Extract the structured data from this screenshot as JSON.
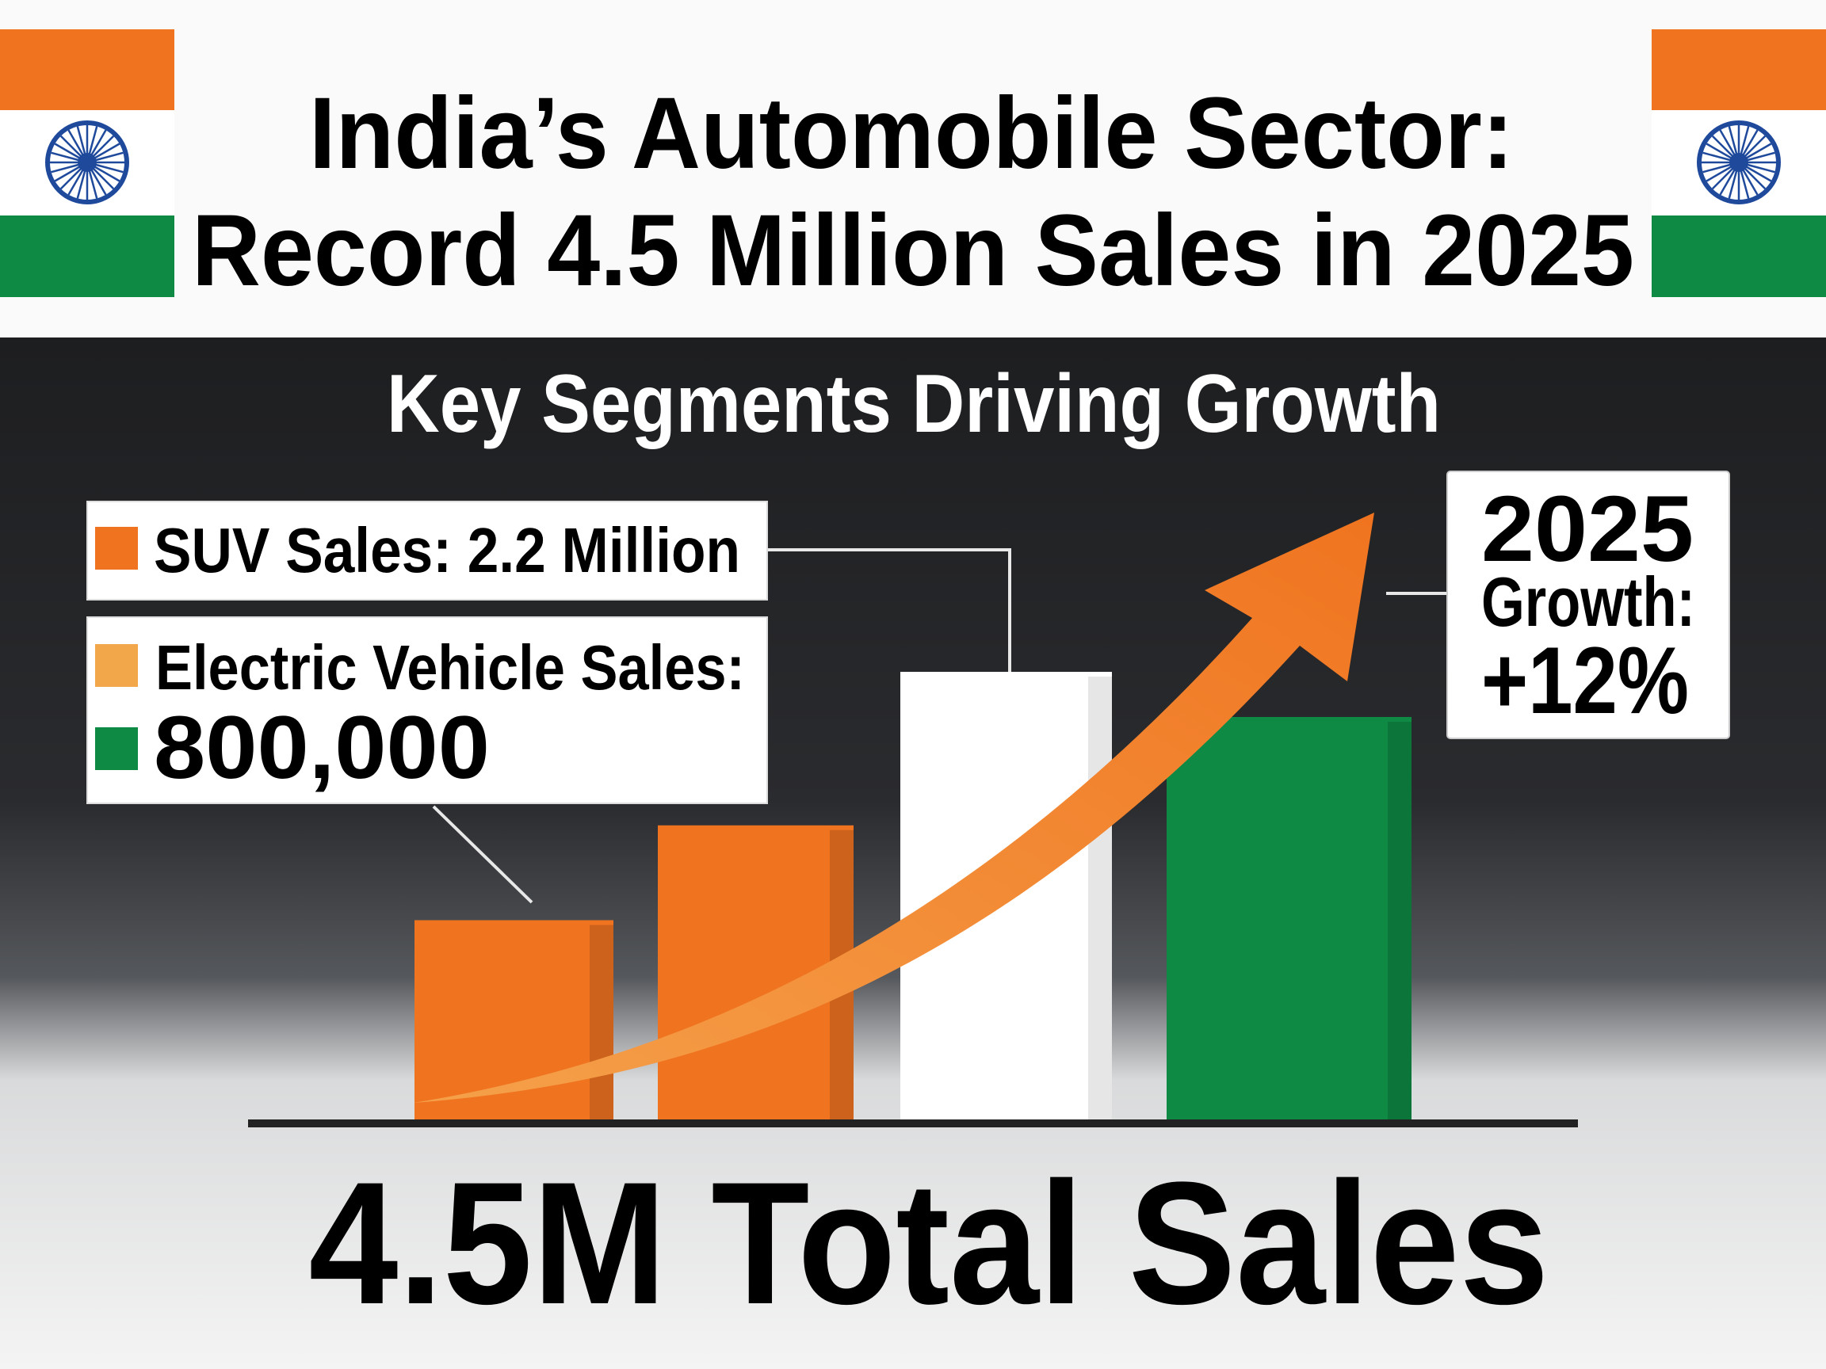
{
  "title": {
    "line1": "India’s Automobile Sector:",
    "line2": "Record 4.5 Million Sales in 2025"
  },
  "subtitle": "Key Segments Driving Growth",
  "legend": {
    "suv": "SUV Sales: 2.2 Million",
    "ev_label": "Electric Vehicle Sales:",
    "ev_value": "800,000"
  },
  "growth_box": {
    "year": "2025",
    "label": "Growth:",
    "value": "+12%"
  },
  "total": "4.5M Total Sales",
  "colors": {
    "saffron": "#F07420",
    "light_orange": "#F2A84A",
    "white": "#FFFFFF",
    "green": "#0F8A45",
    "chakra_blue": "#1F4A9C",
    "dark_background": "#222325"
  },
  "icons": [
    "india-flag-left",
    "india-flag-right",
    "growth-arrow"
  ],
  "chart_data": {
    "type": "bar",
    "title": "Key Segments Driving Growth",
    "values_note_unit": "relative height, % of tallest bar (no axis printed)",
    "values": [
      45,
      66,
      100,
      90
    ],
    "bar_colors": [
      "#F07420",
      "#F07420",
      "#FFFFFF",
      "#0F8A45"
    ],
    "grid": false,
    "trend_arrow": "upward"
  }
}
